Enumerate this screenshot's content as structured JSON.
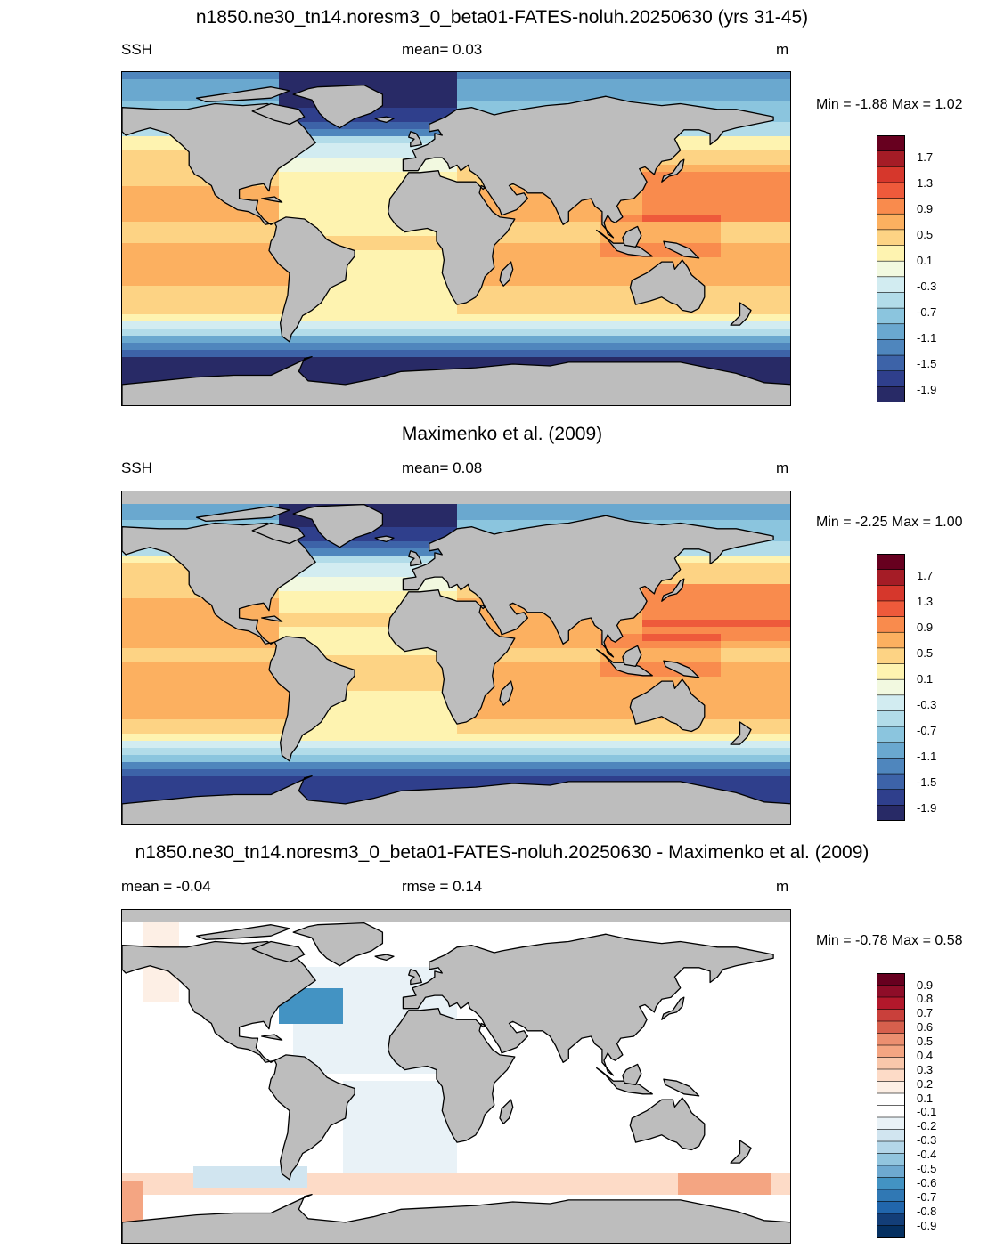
{
  "panels": [
    {
      "title": "n1850.ne30_tn14.noresm3_0_beta01-FATES-noluh.20250630 (yrs 31-45)",
      "left_label": "SSH",
      "center_label": "mean=   0.03",
      "right_label": "m",
      "minmax": "Min =  -1.88 Max =   1.02",
      "kind": "ssh"
    },
    {
      "title": "Maximenko et al. (2009)",
      "left_label": "SSH",
      "center_label": "mean=   0.08",
      "right_label": "m",
      "minmax": "Min =  -2.25 Max =   1.00",
      "kind": "ssh"
    },
    {
      "title": "n1850.ne30_tn14.noresm3_0_beta01-FATES-noluh.20250630 - Maximenko et al. (2009)",
      "left_label": "mean =  -0.04",
      "center_label": "rmse =   0.14",
      "right_label": "m",
      "minmax": "Min =  -0.78 Max =   0.58",
      "kind": "diff"
    }
  ],
  "colorbars": {
    "ssh": {
      "colors": [
        "#67001f",
        "#a51c26",
        "#d6372c",
        "#ee5a3b",
        "#f98b4d",
        "#fcb060",
        "#fdd384",
        "#fef3b0",
        "#f2f9e0",
        "#d2ecf1",
        "#b2dce9",
        "#8bc5de",
        "#6aa8cf",
        "#4f86bd",
        "#3d63a8",
        "#2f3f8c",
        "#282a66"
      ],
      "labels": [
        "1.7",
        "1.3",
        "0.9",
        "0.5",
        "0.1",
        "-0.3",
        "-0.7",
        "-1.1",
        "-1.5",
        "-1.9"
      ]
    },
    "diff": {
      "colors": [
        "#67001f",
        "#8e0d28",
        "#b2182b",
        "#c9403b",
        "#d6604d",
        "#eb8f70",
        "#f4a582",
        "#f9c7ab",
        "#fddbc7",
        "#fdefe5",
        "#ffffff",
        "#ffffff",
        "#e9f2f7",
        "#d1e5f0",
        "#b4d6e8",
        "#92c5de",
        "#6ea9d0",
        "#4393c3",
        "#3078b4",
        "#2166ac",
        "#133e78",
        "#053061"
      ],
      "labels": [
        "0.9",
        "0.8",
        "0.7",
        "0.6",
        "0.5",
        "0.4",
        "0.3",
        "0.2",
        "0.1",
        "-0.1",
        "-0.2",
        "-0.3",
        "-0.4",
        "-0.5",
        "-0.6",
        "-0.7",
        "-0.8",
        "-0.9"
      ]
    }
  },
  "chart_data": [
    {
      "type": "heatmap",
      "title": "n1850.ne30_tn14.noresm3_0_beta01-FATES-noluh.20250630 (yrs 31-45)",
      "variable": "SSH",
      "units": "m",
      "mean": 0.03,
      "min": -1.88,
      "max": 1.02,
      "contour_levels": [
        -1.9,
        -1.7,
        -1.5,
        -1.3,
        -1.1,
        -0.9,
        -0.7,
        -0.5,
        -0.3,
        -0.1,
        0.1,
        0.3,
        0.5,
        0.7,
        0.9,
        1.1,
        1.3,
        1.5,
        1.7,
        1.9
      ],
      "colorbar_labels": [
        1.7,
        1.3,
        0.9,
        0.5,
        0.1,
        -0.3,
        -0.7,
        -1.1,
        -1.5,
        -1.9
      ]
    },
    {
      "type": "heatmap",
      "title": "Maximenko et al. (2009)",
      "variable": "SSH",
      "units": "m",
      "mean": 0.08,
      "min": -2.25,
      "max": 1.0,
      "contour_levels": [
        -1.9,
        -1.7,
        -1.5,
        -1.3,
        -1.1,
        -0.9,
        -0.7,
        -0.5,
        -0.3,
        -0.1,
        0.1,
        0.3,
        0.5,
        0.7,
        0.9,
        1.1,
        1.3,
        1.5,
        1.7,
        1.9
      ],
      "colorbar_labels": [
        1.7,
        1.3,
        0.9,
        0.5,
        0.1,
        -0.3,
        -0.7,
        -1.1,
        -1.5,
        -1.9
      ]
    },
    {
      "type": "heatmap",
      "title": "n1850.ne30_tn14.noresm3_0_beta01-FATES-noluh.20250630 - Maximenko et al. (2009)",
      "units": "m",
      "mean": -0.04,
      "rmse": 0.14,
      "min": -0.78,
      "max": 0.58,
      "colorbar_labels": [
        0.9,
        0.8,
        0.7,
        0.6,
        0.5,
        0.4,
        0.3,
        0.2,
        0.1,
        -0.1,
        -0.2,
        -0.3,
        -0.4,
        -0.5,
        -0.6,
        -0.7,
        -0.8,
        -0.9
      ]
    }
  ]
}
